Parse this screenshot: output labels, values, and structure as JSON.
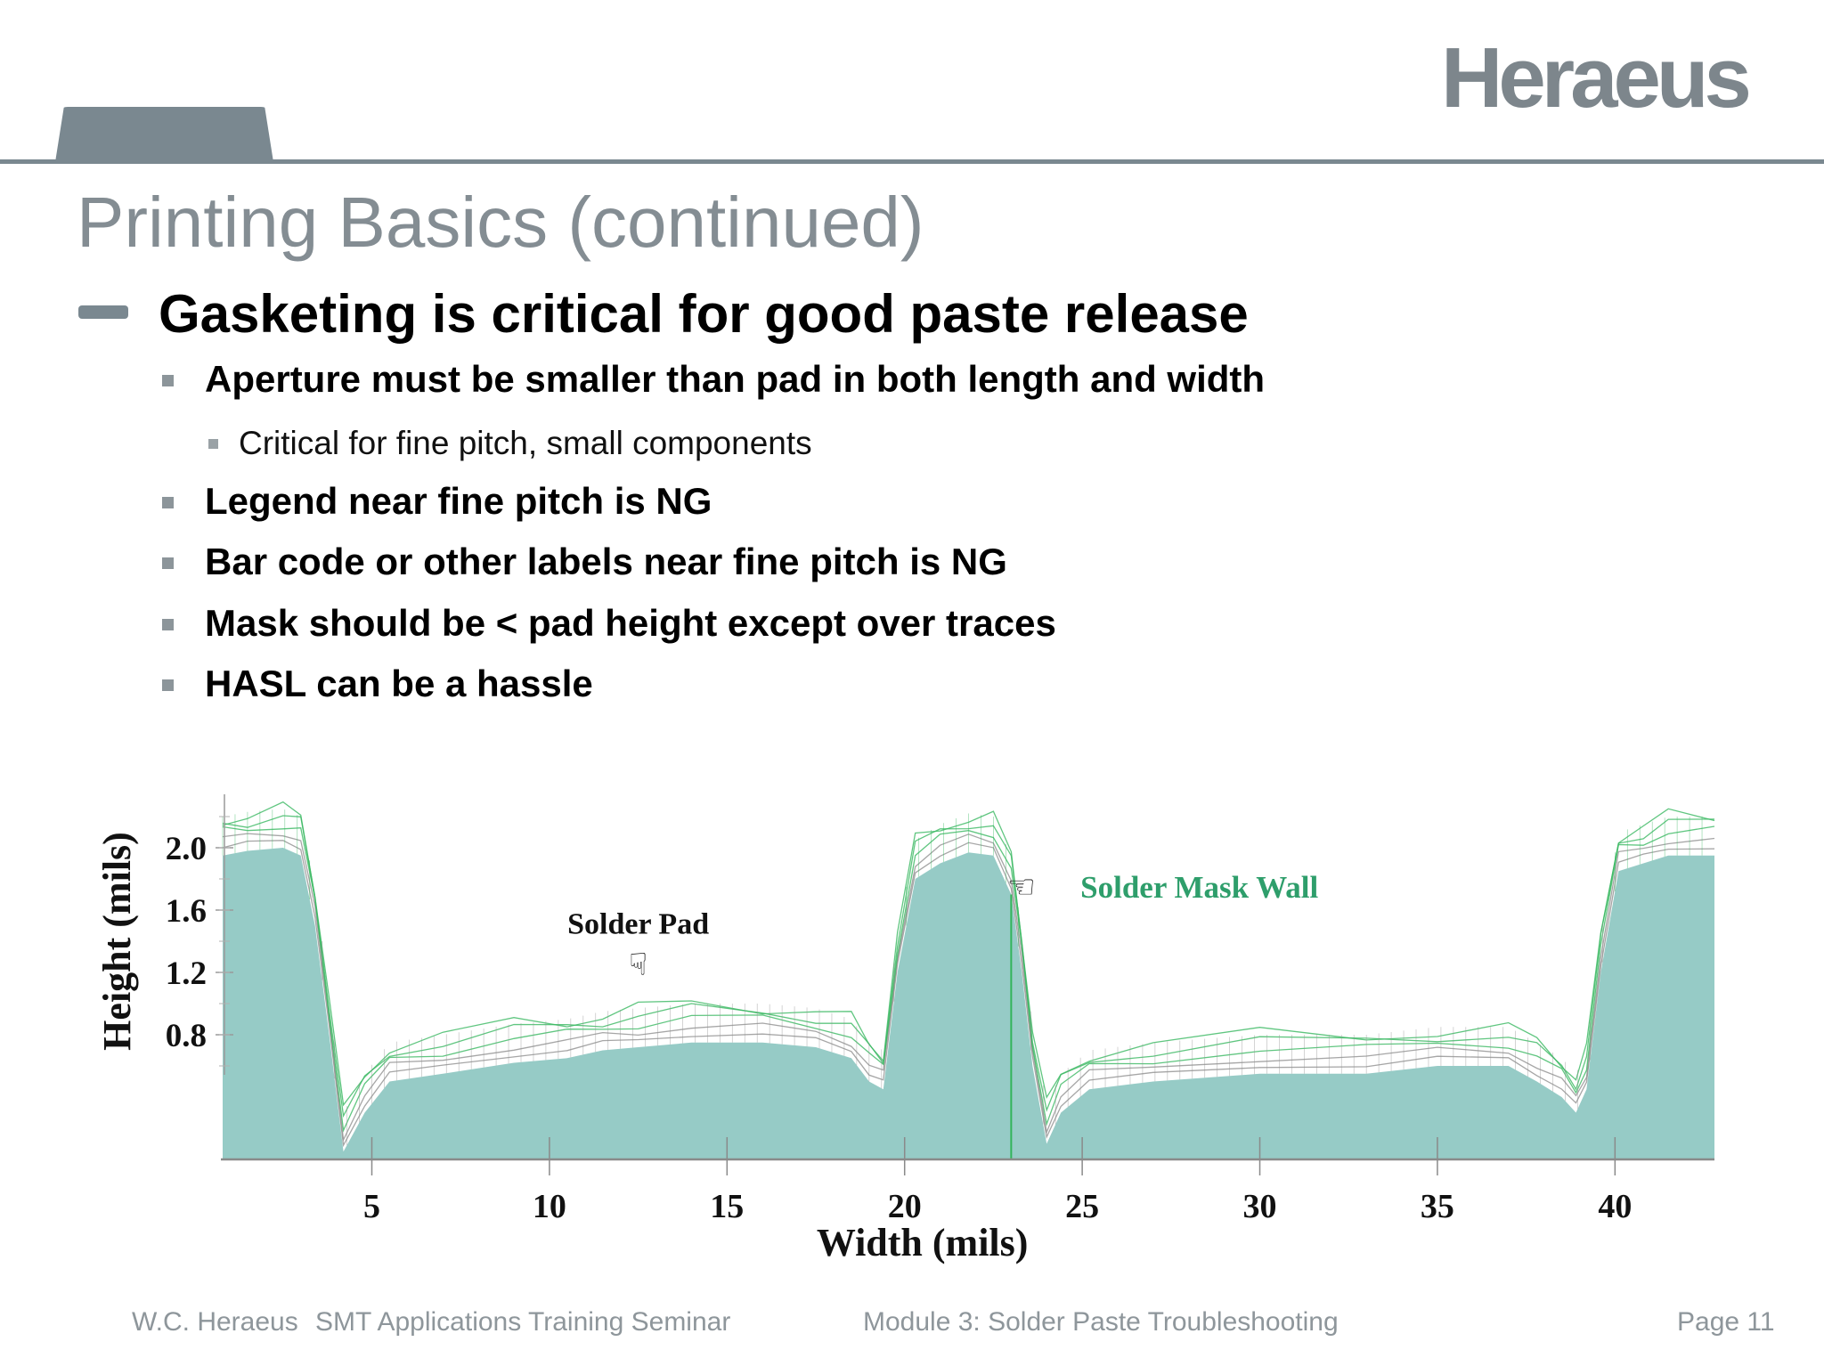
{
  "header": {
    "logo_text": "Heraeus"
  },
  "slide": {
    "title": "Printing Basics (continued)",
    "main_bullet": "Gasketing is critical for good paste release",
    "bullets": [
      {
        "level": 2,
        "text": "Aperture must be smaller than pad in both length and width"
      },
      {
        "level": 3,
        "text": "Critical for fine pitch, small components"
      },
      {
        "level": 2,
        "text": "Legend near fine pitch is NG"
      },
      {
        "level": 2,
        "text": "Bar code or other labels near fine pitch is NG"
      },
      {
        "level": 2,
        "text": "Mask should be < pad height except over traces"
      },
      {
        "level": 2,
        "text": "HASL can be a hassle"
      }
    ]
  },
  "chart_data": {
    "type": "area",
    "xlabel": "Width (mils)",
    "ylabel": "Height (mils)",
    "xlim": [
      0.8,
      42.8
    ],
    "ylim": [
      0.0,
      2.4
    ],
    "x_ticks": [
      5,
      10,
      15,
      20,
      25,
      30,
      35,
      40
    ],
    "y_ticks": [
      0.8,
      1.2,
      1.6,
      2.0
    ],
    "annotations": [
      {
        "text": "Solder Pad",
        "x": 12.5,
        "y": 1.45,
        "pointer": "hand-down-icon",
        "color": "#111111"
      },
      {
        "text": "Solder Mask Wall",
        "x": 28.3,
        "y": 1.75,
        "pointer": "hand-left-icon",
        "color": "#2e9e6b"
      }
    ],
    "colors": {
      "fill": "#96cbc6",
      "mesh": "#909090",
      "mesh_green": "#38b860"
    },
    "series": [
      {
        "name": "profile",
        "x": [
          0.8,
          1.5,
          2.5,
          3.0,
          3.4,
          3.8,
          4.2,
          4.8,
          5.5,
          7.0,
          9.0,
          10.5,
          11.5,
          12.5,
          14.0,
          16.0,
          17.5,
          18.5,
          19.0,
          19.4,
          19.8,
          20.3,
          21.0,
          21.8,
          22.5,
          23.0,
          23.3,
          23.6,
          24.0,
          24.4,
          25.2,
          27.0,
          30.0,
          33.0,
          35.0,
          37.0,
          37.8,
          38.5,
          38.9,
          39.2,
          39.6,
          40.1,
          40.8,
          41.5,
          42.8
        ],
        "y": [
          1.95,
          1.98,
          2.0,
          1.95,
          1.5,
          0.8,
          0.05,
          0.3,
          0.5,
          0.55,
          0.62,
          0.65,
          0.7,
          0.72,
          0.75,
          0.75,
          0.72,
          0.65,
          0.5,
          0.45,
          1.2,
          1.8,
          1.9,
          1.97,
          1.95,
          1.7,
          1.2,
          0.6,
          0.1,
          0.3,
          0.45,
          0.5,
          0.55,
          0.55,
          0.6,
          0.6,
          0.5,
          0.4,
          0.3,
          0.45,
          1.2,
          1.85,
          1.9,
          1.95,
          1.95
        ]
      }
    ],
    "mesh_offsets": [
      0.05,
      0.1,
      0.15,
      0.2,
      0.24
    ]
  },
  "footer": {
    "company": "W.C. Heraeus",
    "seminar": "SMT Applications Training Seminar",
    "module": "Module 3: Solder Paste Troubleshooting",
    "page": "Page 11"
  }
}
